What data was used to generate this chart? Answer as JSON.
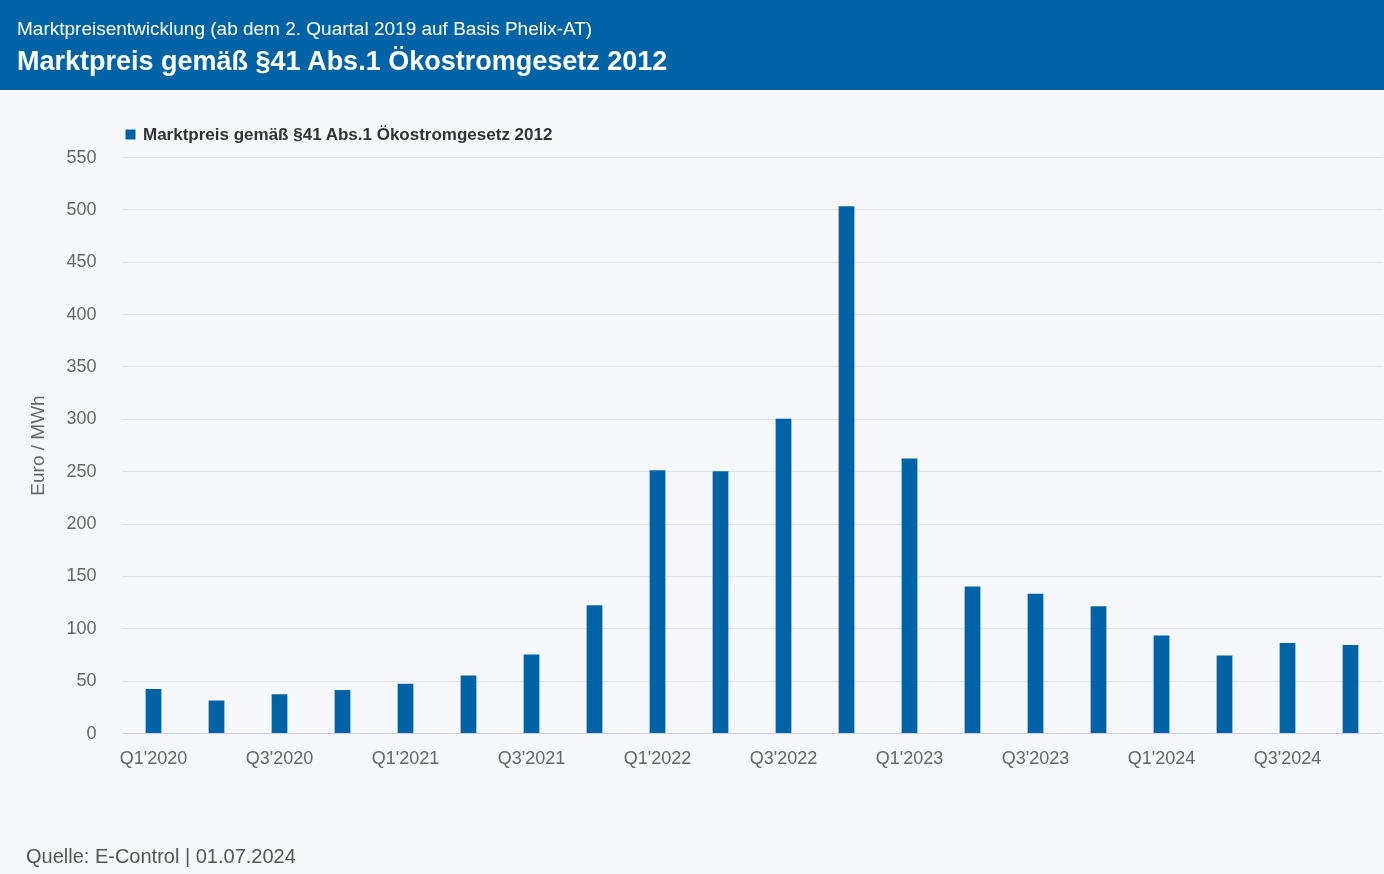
{
  "chart_data": {
    "type": "bar",
    "subtitle": "Marktpreisentwicklung (ab dem 2. Quartal 2019 auf Basis Phelix-AT)",
    "title": "Marktpreis gemäß §41 Abs.1 Ökostromgesetz 2012",
    "ylabel": "Euro / MWh",
    "categories": [
      "Q1'2020",
      null,
      "Q3'2020",
      null,
      "Q1'2021",
      null,
      "Q3'2021",
      null,
      "Q1'2022",
      null,
      "Q3'2022",
      null,
      "Q1'2023",
      null,
      "Q3'2023",
      null,
      "Q1'2024",
      null,
      "Q3'2024",
      null
    ],
    "series": [
      {
        "name": "Marktpreis gemäß §41 Abs.1 Ökostromgesetz 2012",
        "color": "#0063a6",
        "values": [
          42,
          31,
          37,
          41,
          47,
          55,
          75,
          122,
          251,
          250,
          300,
          503,
          262,
          140,
          133,
          121,
          93,
          74,
          86,
          84
        ]
      }
    ],
    "ylim": [
      0,
      550
    ],
    "yticks": [
      0,
      50,
      100,
      150,
      200,
      250,
      300,
      350,
      400,
      450,
      500,
      550
    ],
    "grid": "y",
    "legend": "top",
    "annotations": [
      "Quelle: E-Control | 01.07.2024"
    ]
  }
}
